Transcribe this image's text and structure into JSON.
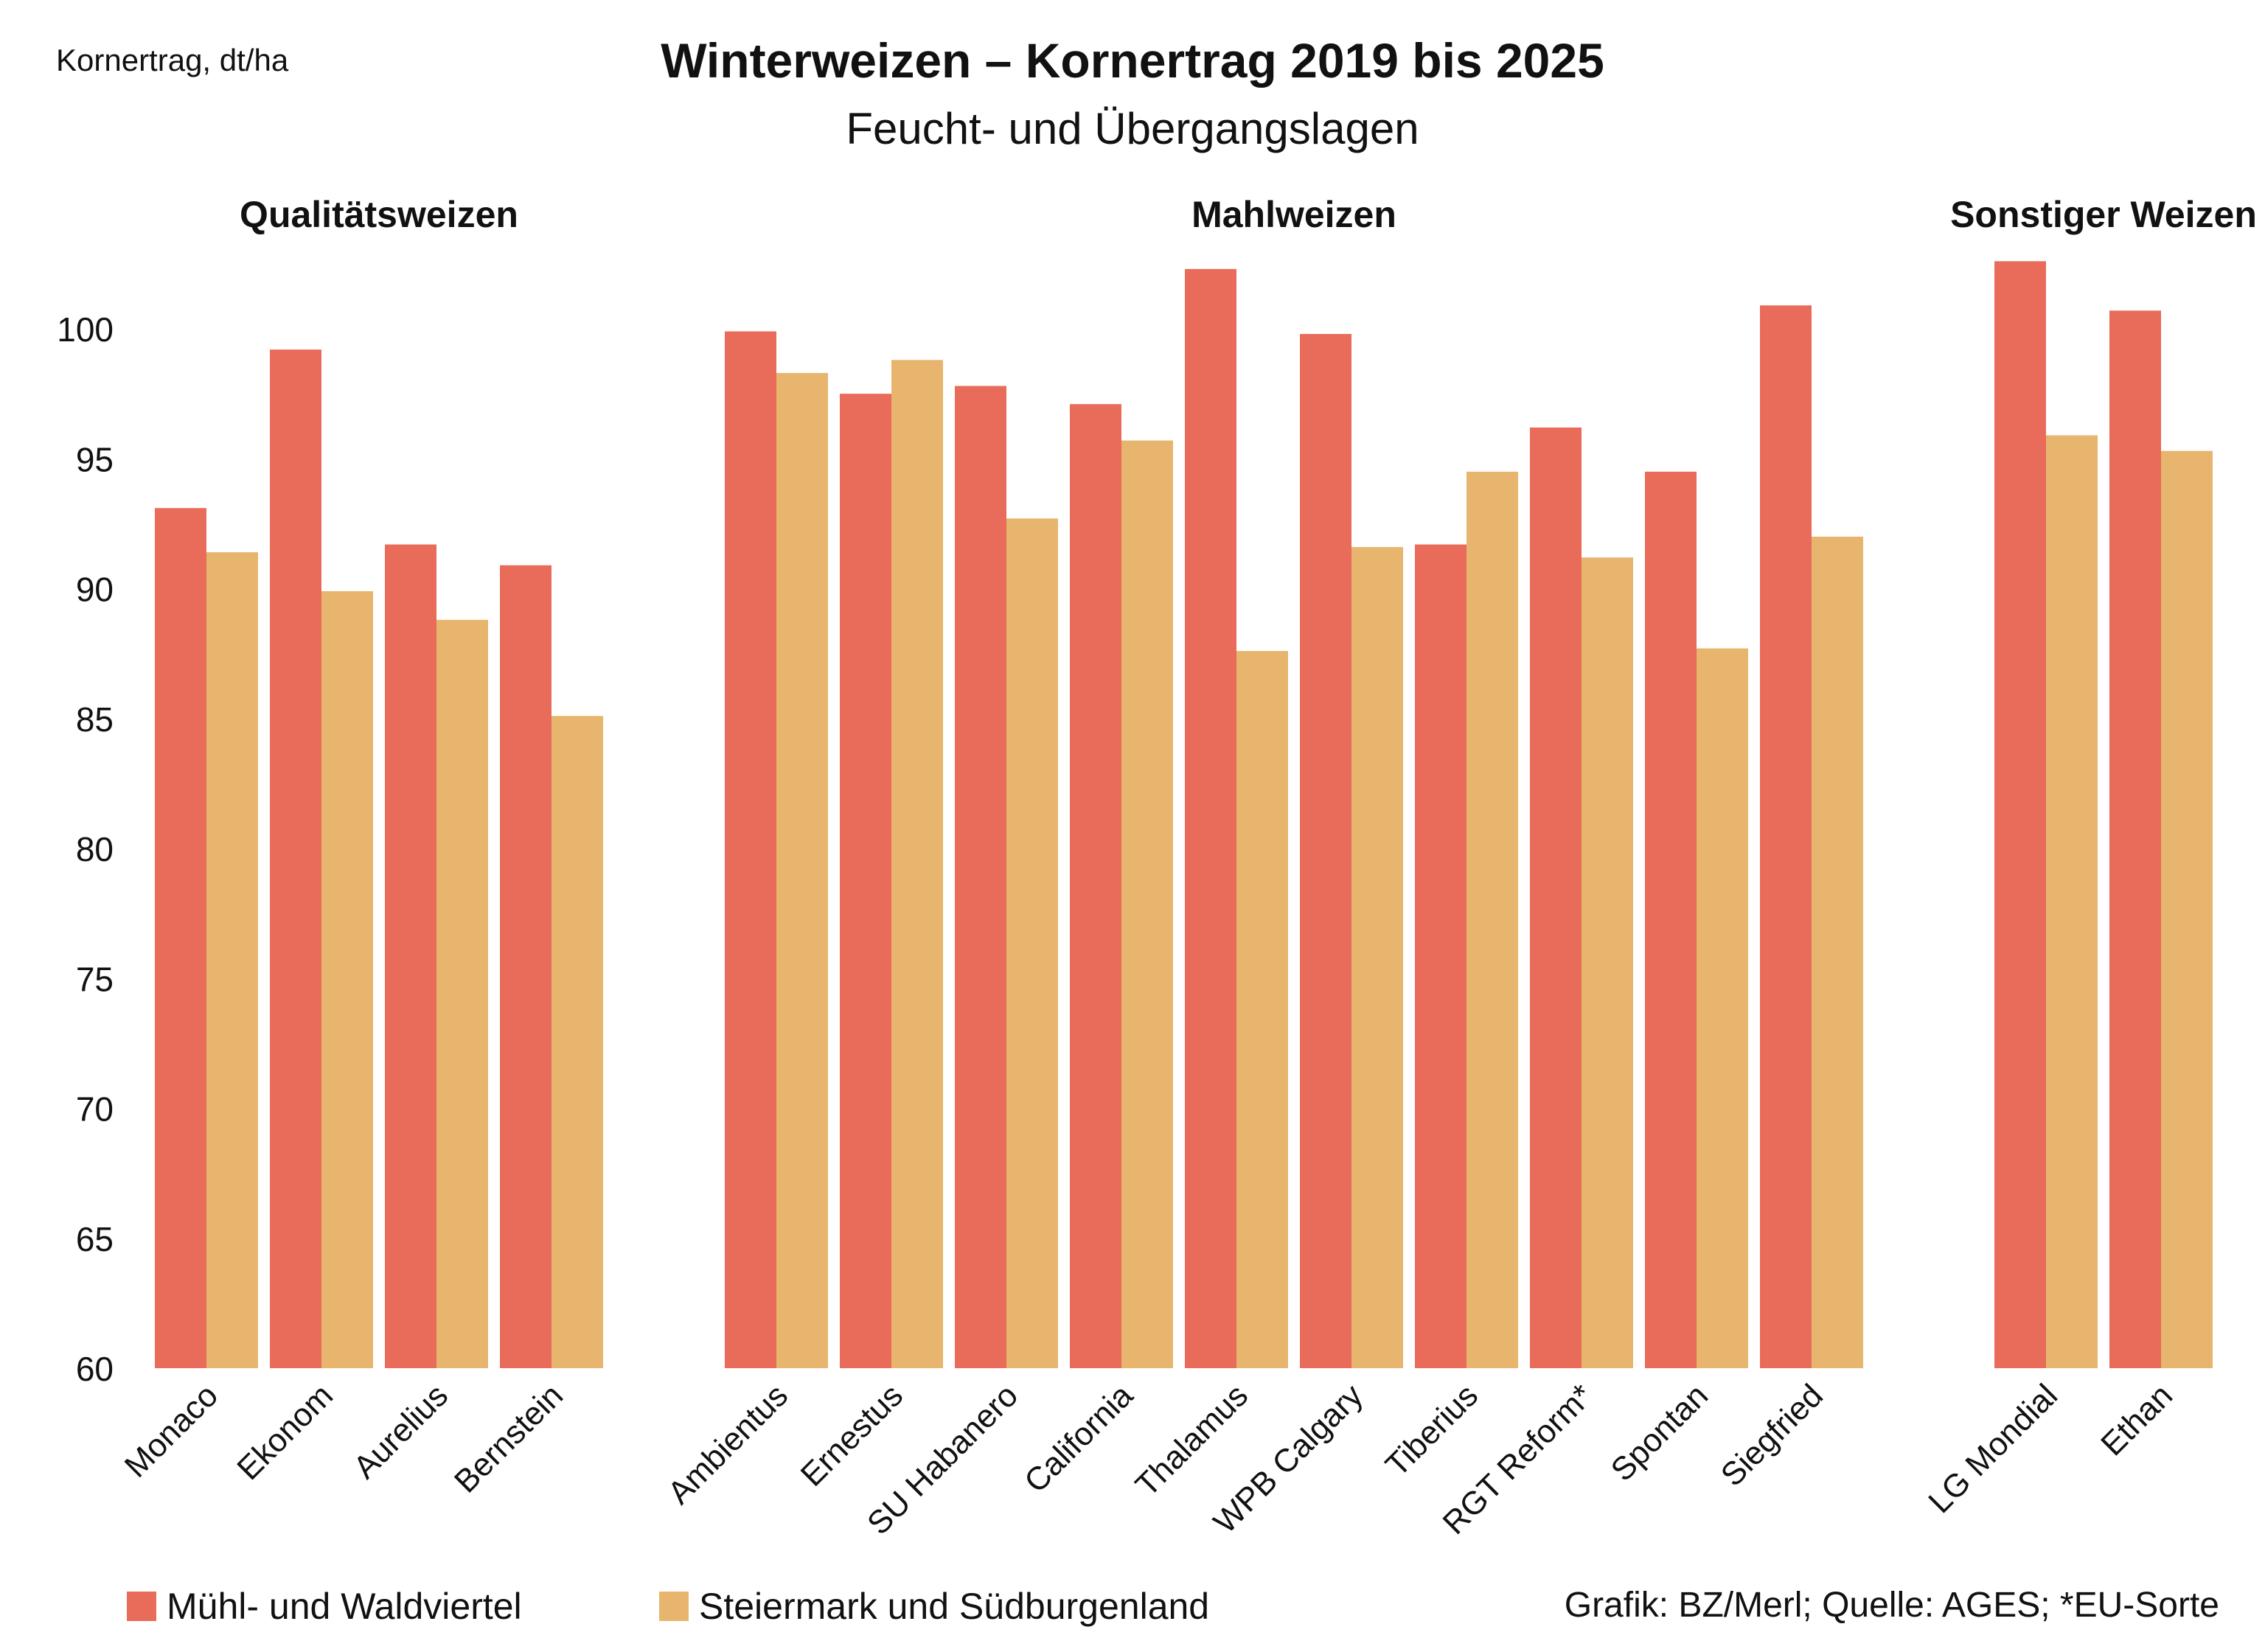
{
  "chart_data": {
    "type": "bar",
    "title": "Winterweizen – Kornertrag 2019 bis 2025",
    "subtitle": "Feucht- und Übergangslagen",
    "ylabel": "Kornertrag, dt/ha",
    "ylim": [
      60,
      102.5
    ],
    "yticks": [
      60,
      65,
      70,
      75,
      80,
      85,
      90,
      95,
      100
    ],
    "grid": false,
    "legend_position": "bottom-left",
    "colors": {
      "Mühl- und Waldviertel": "#e96b5a",
      "Steiermark und Südburgenland": "#e8b56e"
    },
    "groups": [
      {
        "name": "Qualitätsweizen",
        "start": 0,
        "count": 4
      },
      {
        "name": "Mahlweizen",
        "start": 4,
        "count": 10
      },
      {
        "name": "Sonstiger Weizen",
        "start": 14,
        "count": 2
      }
    ],
    "categories": [
      "Monaco",
      "Ekonom",
      "Aurelius",
      "Bernstein",
      "Ambientus",
      "Ernestus",
      "SU Habanero",
      "California",
      "Thalamus",
      "WPB Calgary",
      "Tiberius",
      "RGT Reform*",
      "Spontan",
      "Siegfried",
      "LG Mondial",
      "Ethan"
    ],
    "series": [
      {
        "name": "Mühl- und Waldviertel",
        "values": [
          93.1,
          99.2,
          91.7,
          90.9,
          99.9,
          97.5,
          97.8,
          97.1,
          102.3,
          99.8,
          91.7,
          96.2,
          94.5,
          100.9,
          102.6,
          100.7
        ]
      },
      {
        "name": "Steiermark und Südburgenland",
        "values": [
          91.4,
          89.9,
          88.8,
          85.1,
          98.3,
          98.8,
          92.7,
          95.7,
          87.6,
          91.6,
          94.5,
          91.2,
          87.7,
          92.0,
          95.9,
          95.3
        ]
      }
    ]
  },
  "legend": {
    "items": [
      {
        "label": "Mühl- und Waldviertel",
        "color": "#e96b5a"
      },
      {
        "label": "Steiermark und Südburgenland",
        "color": "#e8b56e"
      }
    ]
  },
  "credit": "Grafik: BZ/Merl; Quelle: AGES; *EU-Sorte"
}
